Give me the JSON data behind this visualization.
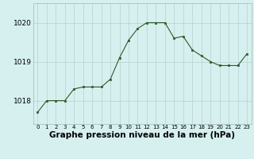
{
  "x": [
    0,
    1,
    2,
    3,
    4,
    5,
    6,
    7,
    8,
    9,
    10,
    11,
    12,
    13,
    14,
    15,
    16,
    17,
    18,
    19,
    20,
    21,
    22,
    23
  ],
  "y": [
    1017.7,
    1018.0,
    1018.0,
    1018.0,
    1018.3,
    1018.35,
    1018.35,
    1018.35,
    1018.55,
    1019.1,
    1019.55,
    1019.85,
    1020.0,
    1020.0,
    1020.0,
    1019.6,
    1019.65,
    1019.3,
    1019.15,
    1019.0,
    1018.9,
    1018.9,
    1018.9,
    1019.2
  ],
  "line_color": "#2d5a27",
  "marker": "s",
  "marker_size": 2,
  "bg_color": "#d6f0f0",
  "grid_color": "#b8cece",
  "xlabel": "Graphe pression niveau de la mer (hPa)",
  "xlabel_fontsize": 7.5,
  "yticks": [
    1018,
    1019,
    1020
  ],
  "ylim": [
    1017.4,
    1020.5
  ],
  "xlim": [
    -0.5,
    23.5
  ],
  "xtick_labels": [
    "0",
    "1",
    "2",
    "3",
    "4",
    "5",
    "6",
    "7",
    "8",
    "9",
    "10",
    "11",
    "12",
    "13",
    "14",
    "15",
    "16",
    "17",
    "18",
    "19",
    "20",
    "21",
    "22",
    "23"
  ],
  "ytick_fontsize": 6.5,
  "xtick_fontsize": 5.0
}
